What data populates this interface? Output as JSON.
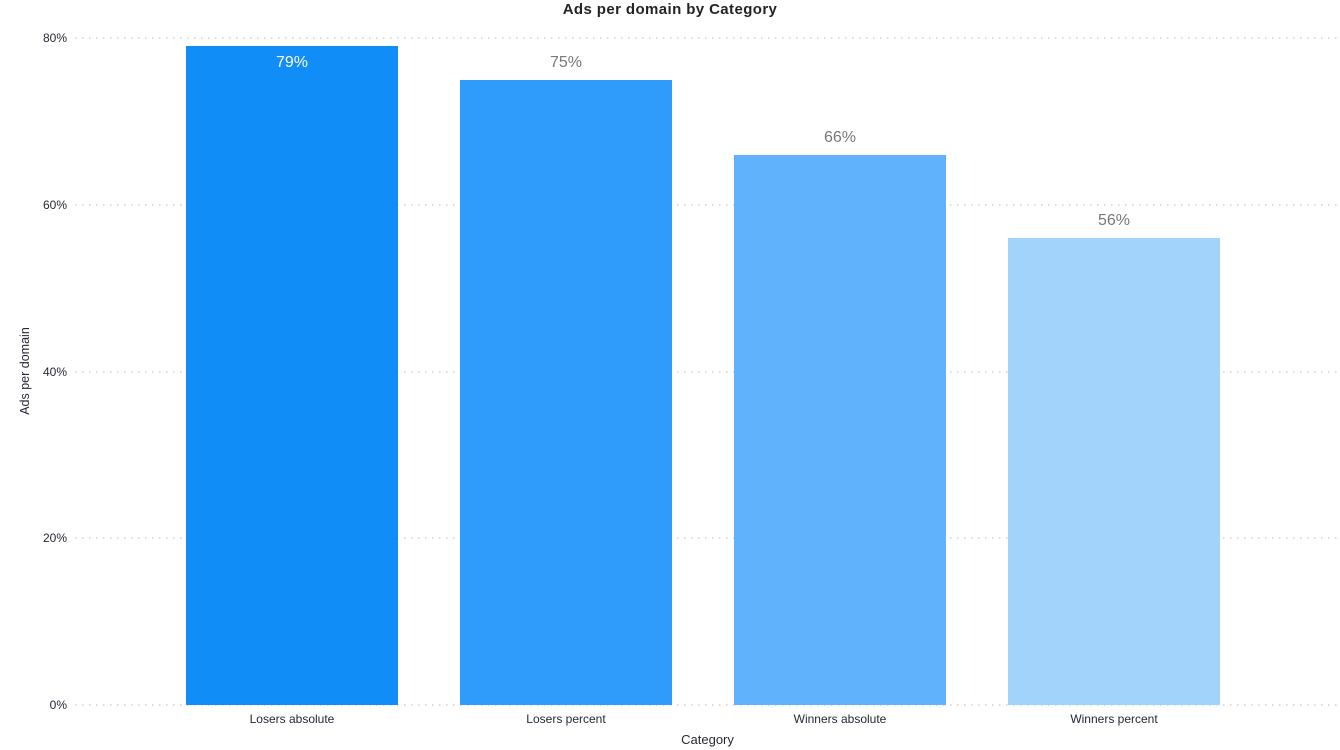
{
  "chart_data": {
    "type": "bar",
    "title": "Ads per domain by Category",
    "xlabel": "Category",
    "ylabel": "Ads per domain",
    "categories": [
      "Losers absolute",
      "Losers percent",
      "Winners absolute",
      "Winners percent"
    ],
    "values": [
      79,
      75,
      66,
      56
    ],
    "value_labels": [
      "79%",
      "75%",
      "66%",
      "56%"
    ],
    "bar_colors": [
      "#118DF8",
      "#2F9BFA",
      "#61B2FC",
      "#A2D3FB"
    ],
    "y_tick_values": [
      0,
      20,
      40,
      60,
      80
    ],
    "y_tick_labels": [
      "0%",
      "20%",
      "40%",
      "60%",
      "80%"
    ],
    "ylim": [
      0,
      80
    ],
    "grid": "horizontal-dotted",
    "legend": "none",
    "label_color_outside": "#777776",
    "label_color_inside": "#ffffff",
    "gridline_color": "#dcdcdc"
  }
}
